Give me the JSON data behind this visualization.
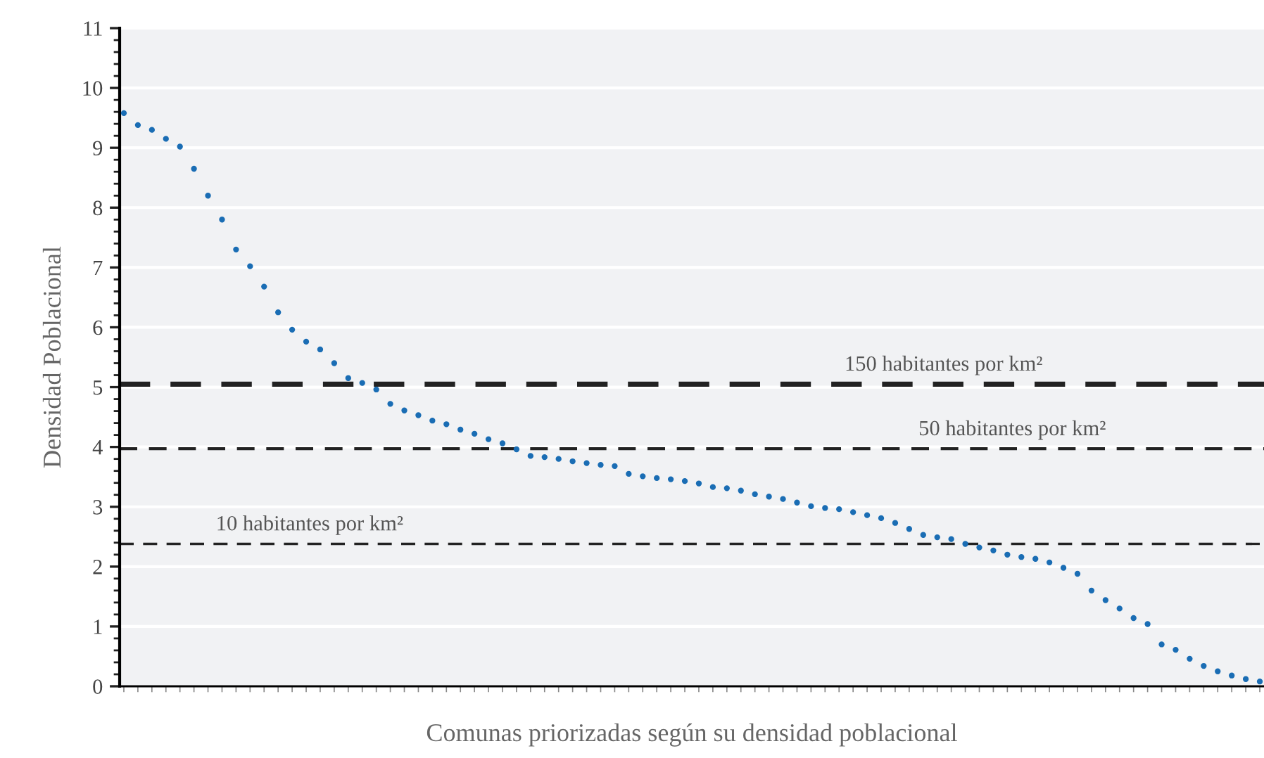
{
  "chart_data": {
    "type": "scatter",
    "xlabel": "Comunas priorizadas según su densidad poblacional",
    "ylabel": "Densidad Poblacional",
    "categories": [
      null,
      null,
      null,
      null,
      null,
      null,
      null,
      null,
      null,
      null,
      null,
      null,
      null,
      null,
      null,
      null,
      null,
      null,
      null,
      null,
      null,
      null,
      null,
      null,
      null,
      null,
      null,
      null,
      null,
      null,
      null,
      null,
      null,
      null,
      null,
      null,
      null,
      null,
      null,
      null,
      null,
      null,
      null,
      null,
      null,
      null,
      null,
      null,
      null,
      null,
      null,
      null,
      null,
      null,
      null,
      null,
      null,
      null,
      null,
      null,
      null,
      null,
      null,
      null,
      null,
      null,
      null,
      null,
      null,
      null,
      null,
      null,
      null,
      null,
      null,
      null,
      null,
      null,
      null,
      null,
      null,
      null
    ],
    "series": [
      {
        "color": "#1a6db4",
        "values": [
          9.58,
          9.38,
          9.3,
          9.15,
          9.02,
          8.65,
          8.2,
          7.8,
          7.3,
          7.02,
          6.68,
          6.25,
          5.96,
          5.76,
          5.63,
          5.4,
          5.15,
          5.07,
          4.96,
          4.72,
          4.61,
          4.53,
          4.44,
          4.38,
          4.29,
          4.22,
          4.13,
          4.06,
          3.96,
          3.85,
          3.83,
          3.8,
          3.76,
          3.73,
          3.7,
          3.68,
          3.55,
          3.51,
          3.48,
          3.46,
          3.43,
          3.39,
          3.33,
          3.31,
          3.27,
          3.21,
          3.17,
          3.13,
          3.07,
          3.01,
          2.98,
          2.96,
          2.91,
          2.86,
          2.81,
          2.73,
          2.63,
          2.53,
          2.49,
          2.46,
          2.38,
          2.32,
          2.27,
          2.2,
          2.16,
          2.13,
          2.07,
          1.98,
          1.88,
          1.6,
          1.44,
          1.3,
          1.14,
          1.04,
          0.7,
          0.61,
          0.46,
          0.34,
          0.25,
          0.18,
          0.12,
          0.08
        ]
      }
    ],
    "ylim": [
      0,
      11
    ],
    "yticks": [
      0,
      1,
      2,
      3,
      4,
      5,
      6,
      7,
      8,
      9,
      10,
      11
    ],
    "grid": "y",
    "marker": "circle",
    "tick_labels": "y",
    "legend": false,
    "ref_lines": [
      {
        "axis": "y",
        "value": 5.05,
        "label": "150 habitantes por km²",
        "color": "#222222",
        "line_style": "dashed"
      },
      {
        "axis": "y",
        "value": 3.97,
        "label": "50 habitantes por km²",
        "color": "#222222",
        "line_style": "dashed"
      },
      {
        "axis": "y",
        "value": 2.38,
        "label": "10 habitantes por km²",
        "color": "#222222",
        "line_style": "dashed"
      }
    ]
  }
}
